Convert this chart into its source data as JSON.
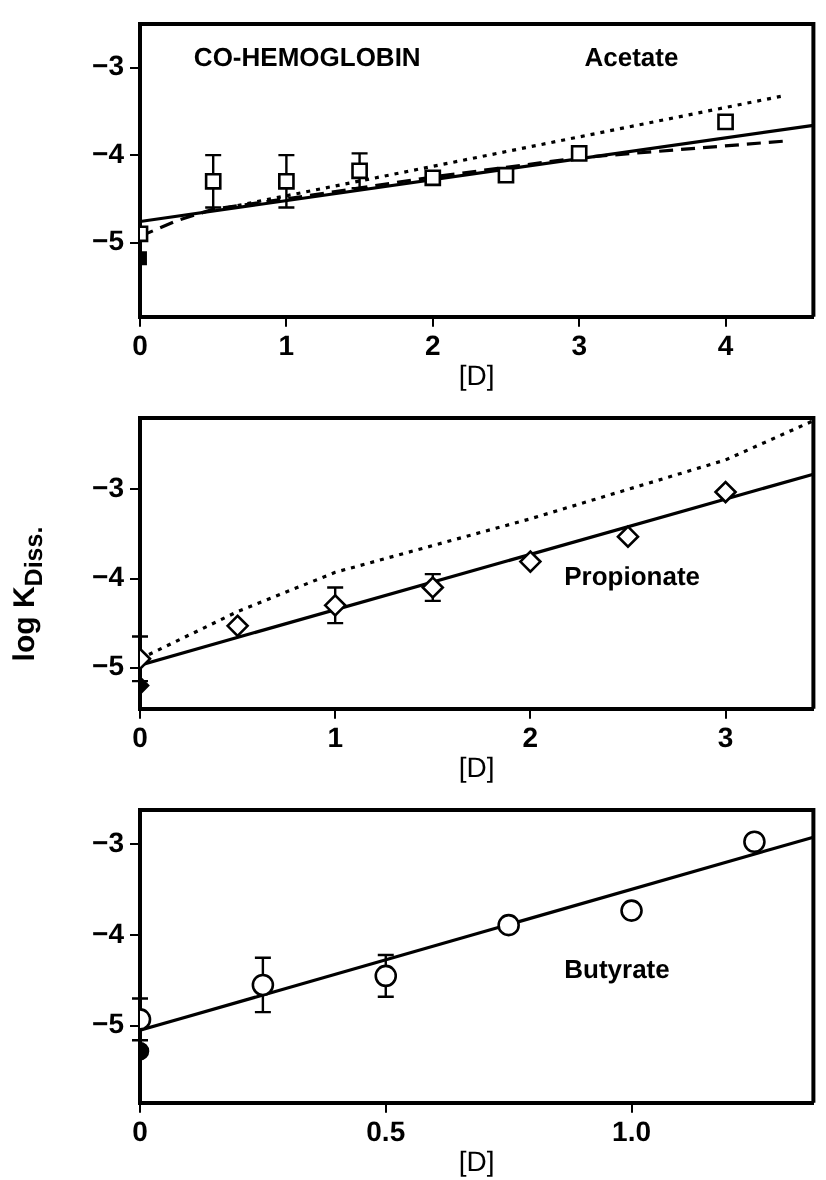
{
  "chart_data": [
    {
      "type": "scatter",
      "xlabel": "[D]",
      "annotations": [
        "CO-HEMOGLOBIN",
        "Acetate"
      ],
      "xlim": [
        0,
        4.6
      ],
      "ylim": [
        -5.85,
        -2.5
      ],
      "xticks": [
        0,
        1,
        2,
        3,
        4
      ],
      "yticks": [
        -5,
        -4,
        -3
      ],
      "grid": false,
      "legend": false,
      "series": [
        {
          "type": "scatter",
          "marker": "square",
          "color": "#000000",
          "x": [
            0,
            0.5,
            1,
            1.5,
            2,
            2.5,
            3,
            4
          ],
          "values": [
            -4.9,
            -4.3,
            -4.3,
            -4.18,
            -4.26,
            -4.23,
            -3.98,
            -3.62
          ],
          "errors": [
            null,
            0.3,
            0.3,
            0.2,
            null,
            null,
            null,
            null
          ]
        },
        {
          "type": "scatter",
          "marker": "square",
          "color": "#000000",
          "x": [
            0
          ],
          "values": [
            -5.18
          ]
        },
        {
          "type": "line",
          "marker": "none",
          "line_style": "solid",
          "color": "#000000",
          "x": [
            0,
            4.6
          ],
          "values": [
            -4.76,
            -3.66
          ]
        },
        {
          "type": "line",
          "marker": "none",
          "line_style": "dashed",
          "color": "#000000",
          "x": [
            0,
            0.25,
            0.5,
            1,
            2,
            3,
            4.4
          ],
          "values": [
            -4.93,
            -4.75,
            -4.62,
            -4.5,
            -4.25,
            -4.03,
            -3.84
          ]
        },
        {
          "type": "line",
          "marker": "none",
          "line_style": "dotted",
          "color": "#000000",
          "x": [
            0.6,
            4.4
          ],
          "values": [
            -4.6,
            -3.32
          ]
        }
      ]
    },
    {
      "type": "scatter",
      "xlabel": "[D]",
      "ylabel": "log K$_{Diss.}$",
      "annotations": [
        "Propionate"
      ],
      "xlim": [
        0,
        3.45
      ],
      "ylim": [
        -5.46,
        -2.2
      ],
      "xticks": [
        0,
        1,
        2,
        3
      ],
      "yticks": [
        -5,
        -4,
        -3
      ],
      "grid": false,
      "legend": false,
      "series": [
        {
          "type": "scatter",
          "marker": "diamond",
          "color": "#000000",
          "x": [
            0,
            0.5,
            1,
            1.5,
            2,
            2.5,
            3
          ],
          "values": [
            -4.9,
            -4.53,
            -4.3,
            -4.1,
            -3.81,
            -3.53,
            -3.03
          ],
          "errors": [
            0.25,
            null,
            0.2,
            0.15,
            null,
            null,
            null
          ]
        },
        {
          "type": "scatter",
          "marker": "diamond",
          "color": "#000000",
          "x": [
            0
          ],
          "values": [
            -5.2
          ]
        },
        {
          "type": "line",
          "marker": "none",
          "line_style": "solid",
          "color": "#000000",
          "x": [
            0,
            3.45
          ],
          "values": [
            -4.97,
            -2.83
          ]
        },
        {
          "type": "line",
          "marker": "none",
          "line_style": "dotted",
          "color": "#000000",
          "x": [
            0,
            0.5,
            1,
            2,
            3,
            3.45
          ],
          "values": [
            -4.9,
            -4.37,
            -3.93,
            -3.33,
            -2.67,
            -2.23
          ]
        }
      ]
    },
    {
      "type": "scatter",
      "xlabel": "[D]",
      "annotations": [
        "Butyrate"
      ],
      "xlim": [
        0,
        1.37
      ],
      "ylim": [
        -5.85,
        -2.62
      ],
      "xticks": [
        0,
        0.5,
        {
          "value": 1,
          "label": "1.0"
        }
      ],
      "yticks": [
        -5,
        -4,
        -3
      ],
      "grid": false,
      "legend": false,
      "series": [
        {
          "type": "scatter",
          "marker": "circle",
          "color": "#000000",
          "x": [
            0,
            0.25,
            0.5,
            0.75,
            1.0,
            1.25
          ],
          "values": [
            -4.93,
            -4.55,
            -4.45,
            -3.89,
            -3.73,
            -2.97
          ],
          "errors": [
            0.23,
            0.3,
            0.23,
            null,
            null,
            null
          ]
        },
        {
          "type": "scatter",
          "marker": "circle",
          "color": "#000000",
          "x": [
            0
          ],
          "values": [
            -5.28
          ]
        },
        {
          "type": "line",
          "marker": "none",
          "line_style": "solid",
          "color": "#000000",
          "x": [
            0,
            1.37
          ],
          "values": [
            -5.05,
            -2.92
          ]
        }
      ]
    }
  ]
}
